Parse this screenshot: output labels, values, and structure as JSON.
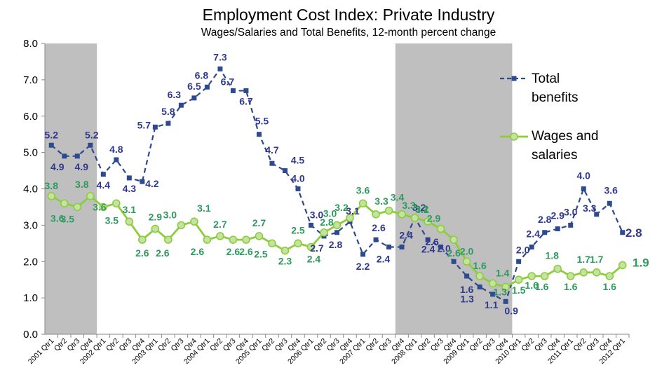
{
  "chart_data": {
    "type": "line",
    "title": "Employment Cost Index:  Private Industry",
    "subtitle": "Wages/Salaries and Total Benefits, 12-month percent change",
    "xlabel": "",
    "ylabel": "",
    "ylim": [
      0,
      8
    ],
    "yticks": [
      "0.0",
      "1.0",
      "2.0",
      "3.0",
      "4.0",
      "5.0",
      "6.0",
      "7.0",
      "8.0"
    ],
    "categories": [
      "2001 Qtr1",
      "Qtr2",
      "Qtr3",
      "Qtr4",
      "2002 Qtr1",
      "Qtr2",
      "Qtr3",
      "Qtr4",
      "2003 Qtr1",
      "Qtr2",
      "Qtr3",
      "Qtr4",
      "2004 Qtr1",
      "Qtr2",
      "Qtr3",
      "Qtr4",
      "2005 Qtr1",
      "Qtr2",
      "Qtr3",
      "Qtr4",
      "2006 Qtr1",
      "Qtr2",
      "Qtr3",
      "Qtr4",
      "2007 Qtr1",
      "Qtr2",
      "Qtr3",
      "Qtr4",
      "2008 Qtr1",
      "Qtr2",
      "Qtr3",
      "Qtr4",
      "2009 Qtr1",
      "Qtr2",
      "Qtr3",
      "Qtr4",
      "2010 Qtr1",
      "Qtr2",
      "Qtr3",
      "Qtr4",
      "2011 Qtr1",
      "Qtr2",
      "Qtr3",
      "Qtr4",
      "2012 Qtr1"
    ],
    "recessions": [
      [
        0,
        3
      ],
      [
        27,
        35
      ]
    ],
    "series": [
      {
        "name": "Total benefits",
        "legend_lines": [
          "Total",
          "benefits"
        ],
        "color": "#2e4a8f",
        "label_color": "#30388f",
        "style": "dashed",
        "marker": "square",
        "values": [
          5.2,
          4.9,
          4.9,
          5.2,
          4.4,
          4.8,
          4.3,
          4.2,
          5.7,
          5.8,
          6.3,
          6.5,
          6.8,
          7.3,
          6.7,
          6.7,
          5.5,
          4.7,
          4.5,
          4.0,
          3.0,
          2.7,
          2.8,
          3.1,
          2.2,
          2.6,
          2.4,
          2.4,
          3.2,
          2.6,
          2.4,
          2.0,
          1.6,
          1.3,
          1.1,
          0.9,
          2.0,
          2.4,
          2.8,
          2.9,
          3.0,
          4.0,
          3.3,
          3.6,
          2.8
        ],
        "labels": [
          "5.2",
          "4.9",
          "4.9",
          "5.2",
          "4.4",
          "4.8",
          "4.3",
          "4.2",
          "5.7",
          "5.8",
          "6.3",
          "6.5",
          "6.8",
          "7.3",
          "6.7",
          "6.7",
          "5.5",
          "4.7",
          "4.5",
          "4.0",
          "3.0",
          "2.7",
          "2.8",
          "3.1",
          "2.2",
          "2.6",
          "2.4",
          "2.4",
          "3.2",
          "2.6",
          "2.4",
          "2.0",
          "1.6",
          "1.3",
          "1.1",
          "0.9",
          "2.0",
          "2.4",
          "2.8",
          "2.9",
          "3.0",
          "4.0",
          "3.3",
          "3.6",
          "2.8"
        ]
      },
      {
        "name": "Wages and salaries",
        "legend_lines": [
          "Wages and",
          "salaries"
        ],
        "color": "#8ccd3c",
        "label_color": "#2e9a5e",
        "style": "solid",
        "marker": "circle",
        "values": [
          3.8,
          3.6,
          3.5,
          3.8,
          3.5,
          3.6,
          3.1,
          2.6,
          2.9,
          2.6,
          3.0,
          3.1,
          2.6,
          2.7,
          2.6,
          2.6,
          2.7,
          2.5,
          2.3,
          2.5,
          2.4,
          2.8,
          3.0,
          3.2,
          3.6,
          3.3,
          3.4,
          3.3,
          3.2,
          3.1,
          2.9,
          2.6,
          2.0,
          1.6,
          1.4,
          1.3,
          1.5,
          1.6,
          1.6,
          1.8,
          1.6,
          1.7,
          1.7,
          1.6,
          1.9
        ],
        "labels": [
          "3.8",
          "3.6",
          "3.5",
          "3.8",
          "3.5",
          "3.6",
          "3.1",
          "2.6",
          "2.9",
          "2.6",
          "3.0",
          "3.1",
          "2.6",
          "2.7",
          "2.6",
          "2.6",
          "2.7",
          "2.5",
          "2.3",
          "2.5",
          "2.4",
          "2.8",
          "3.0",
          "3.2",
          "3.6",
          "3.3",
          "3.4",
          "3.3",
          "3.2",
          "3.1",
          "2.9",
          "2.6",
          "2.0",
          "1.6",
          "1.4",
          "1.3",
          "1.5",
          "1.6",
          "1.6",
          "1.8",
          "1.6",
          "1.7",
          "1.7",
          "1.6",
          "1.9"
        ]
      }
    ]
  }
}
